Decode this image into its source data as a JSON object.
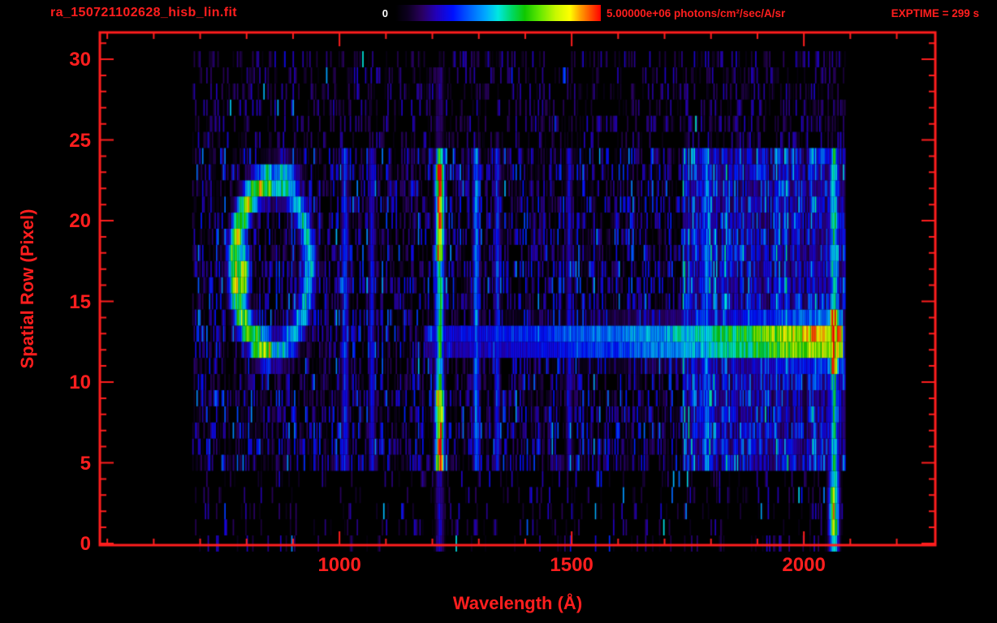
{
  "header": {
    "filename": "ra_150721102628_hisb_lin.fit",
    "exptime": "EXPTIME = 299 s"
  },
  "colorbar": {
    "min_label": "0",
    "max_label": "5.00000e+06 photons/cm²/sec/A/sr",
    "min": 0,
    "max": 5000000
  },
  "colors": {
    "background": "#000000",
    "accent": "#ff1e1e",
    "colorbar_min_text": "#ffffff"
  },
  "chart_data": {
    "type": "heatmap",
    "title": "ra_150721102628_hisb_lin.fit",
    "xlabel": "Wavelength (Å)",
    "ylabel": "Spatial Row (Pixel)",
    "x_range": [
      484,
      2283
    ],
    "y_range": [
      -0.1,
      31.66
    ],
    "data_x_range": [
      683,
      2088
    ],
    "rows_bright": [
      5,
      24
    ],
    "x_major_ticks": [
      1000,
      1500,
      2000
    ],
    "x_minor_step": 100,
    "y_major_ticks": [
      0,
      5,
      10,
      15,
      20,
      25,
      30
    ],
    "y_minor_step": 1,
    "seed": 1337,
    "colormap_stops": [
      [
        0.0,
        "#000000"
      ],
      [
        0.06,
        "#0d0020"
      ],
      [
        0.13,
        "#2a0060"
      ],
      [
        0.2,
        "#2200bb"
      ],
      [
        0.28,
        "#0010ff"
      ],
      [
        0.36,
        "#0060ff"
      ],
      [
        0.44,
        "#00aaff"
      ],
      [
        0.5,
        "#00e8e0"
      ],
      [
        0.57,
        "#00d860"
      ],
      [
        0.63,
        "#10c800"
      ],
      [
        0.7,
        "#60e800"
      ],
      [
        0.78,
        "#c8f800"
      ],
      [
        0.85,
        "#ffff00"
      ],
      [
        0.9,
        "#ffa000"
      ],
      [
        0.95,
        "#ff5000"
      ],
      [
        1.0,
        "#ff0000"
      ]
    ],
    "noise": {
      "inner_max": 0.33,
      "inner_exp": 2.6,
      "outer_density_top": 0.45,
      "outer_density_bottom": 0.18,
      "column_variation": 0.9
    },
    "features": {
      "emission_lines": [
        {
          "lambda": 1012,
          "width": 14,
          "rows": [
            5,
            24
          ],
          "intensity": 0.3
        },
        {
          "lambda": 1070,
          "width": 12,
          "rows": [
            5,
            24
          ],
          "intensity": 0.26
        },
        {
          "lambda": 1216,
          "width": 17,
          "rows": [
            5,
            24
          ],
          "intensity": 0.58,
          "blobs": [
            {
              "rows": [
                5,
                9
              ],
              "intensity": 0.97
            },
            {
              "rows": [
                18,
                23
              ],
              "intensity": 0.92
            },
            {
              "rows": [
                0,
                4
              ],
              "intensity": 0.22
            },
            {
              "rows": [
                25,
                29
              ],
              "intensity": 0.16
            }
          ]
        },
        {
          "lambda": 1295,
          "width": 13,
          "rows": [
            5,
            24
          ],
          "intensity": 0.4
        },
        {
          "lambda": 1340,
          "width": 11,
          "rows": [
            5,
            24
          ],
          "intensity": 0.3
        },
        {
          "lambda": 1495,
          "width": 12,
          "rows": [
            5,
            24
          ],
          "intensity": 0.24
        },
        {
          "lambda": 1790,
          "width": 26,
          "rows": [
            5,
            24
          ],
          "intensity": 0.34
        },
        {
          "lambda": 2065,
          "width": 19,
          "rows": [
            0,
            24
          ],
          "intensity": 0.52,
          "blobs": [
            {
              "rows": [
                11,
                14
              ],
              "intensity": 0.95
            },
            {
              "rows": [
                1,
                3
              ],
              "intensity": 0.75
            }
          ]
        }
      ],
      "ring": {
        "center_lambda": 855,
        "center_row": 17.2,
        "radius_lambda": 80,
        "radius_row": 5.2,
        "sigma": 0.14,
        "intensity": 0.5,
        "left_boost": 1.55
      },
      "spots": [
        {
          "lambda": 793,
          "row": 16.5,
          "intensity": 0.88,
          "sigma_lambda": 9,
          "sigma_row": 1.4
        },
        {
          "lambda": 880,
          "row": 22.4,
          "intensity": 0.62,
          "sigma_lambda": 22,
          "sigma_row": 0.9
        }
      ],
      "continuum_trace": {
        "row": 12.6,
        "lambda_range": [
          1185,
          2085
        ],
        "sigma_start": 0.55,
        "sigma_end": 1.1,
        "intensity_stops": [
          [
            0,
            0.3
          ],
          [
            0.4,
            0.4
          ],
          [
            0.65,
            0.55
          ],
          [
            0.8,
            0.72
          ],
          [
            0.92,
            0.88
          ],
          [
            1,
            0.92
          ]
        ]
      },
      "diffuse_band": {
        "lambda_range": [
          1740,
          2090
        ],
        "rows": [
          5,
          24
        ],
        "intensity": 0.12
      }
    }
  }
}
